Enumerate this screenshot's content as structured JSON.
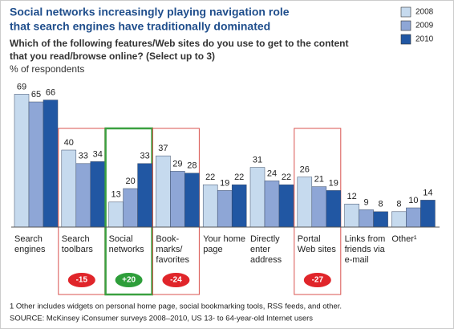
{
  "chart_data": {
    "type": "bar",
    "title": [
      "Social networks increasingly playing navigation role",
      "that search engines have traditionally dominated"
    ],
    "subtitle": [
      "Which of the following features/Web sites do you use to get to the content",
      "that you read/browse online? (Select up to 3)"
    ],
    "y_label": "% of respondents",
    "categories": [
      [
        "Search",
        "engines"
      ],
      [
        "Search",
        "toolbars"
      ],
      [
        "Social",
        "networks"
      ],
      [
        "Book-",
        "marks/",
        "favorites"
      ],
      [
        "Your home",
        "page"
      ],
      [
        "Directly",
        "enter",
        "address"
      ],
      [
        "Portal",
        "Web sites"
      ],
      [
        "Links from",
        "friends via",
        "e-mail"
      ],
      [
        "Other¹"
      ]
    ],
    "series": [
      {
        "name": "2008",
        "color": "#c6daee",
        "values": [
          69,
          40,
          13,
          37,
          22,
          31,
          26,
          12,
          8
        ]
      },
      {
        "name": "2009",
        "color": "#8ea6d6",
        "values": [
          65,
          33,
          20,
          29,
          19,
          24,
          21,
          9,
          10
        ]
      },
      {
        "name": "2010",
        "color": "#2157a3",
        "values": [
          66,
          34,
          33,
          28,
          22,
          22,
          19,
          8,
          14
        ]
      }
    ],
    "change_labels": [
      null,
      "-15",
      "+20",
      "-24",
      null,
      null,
      "-27",
      null,
      null
    ],
    "highlight_colors": [
      null,
      "#d9534f",
      "#3aa040",
      "#d9534f",
      null,
      null,
      "#d9534f",
      null,
      null
    ],
    "footnotes": [
      "1  Other includes widgets on personal home page, social bookmarking tools, RSS feeds, and other.",
      "SOURCE: McKinsey iConsumer surveys 2008–2010, US 13- to 64-year-old Internet users"
    ]
  }
}
